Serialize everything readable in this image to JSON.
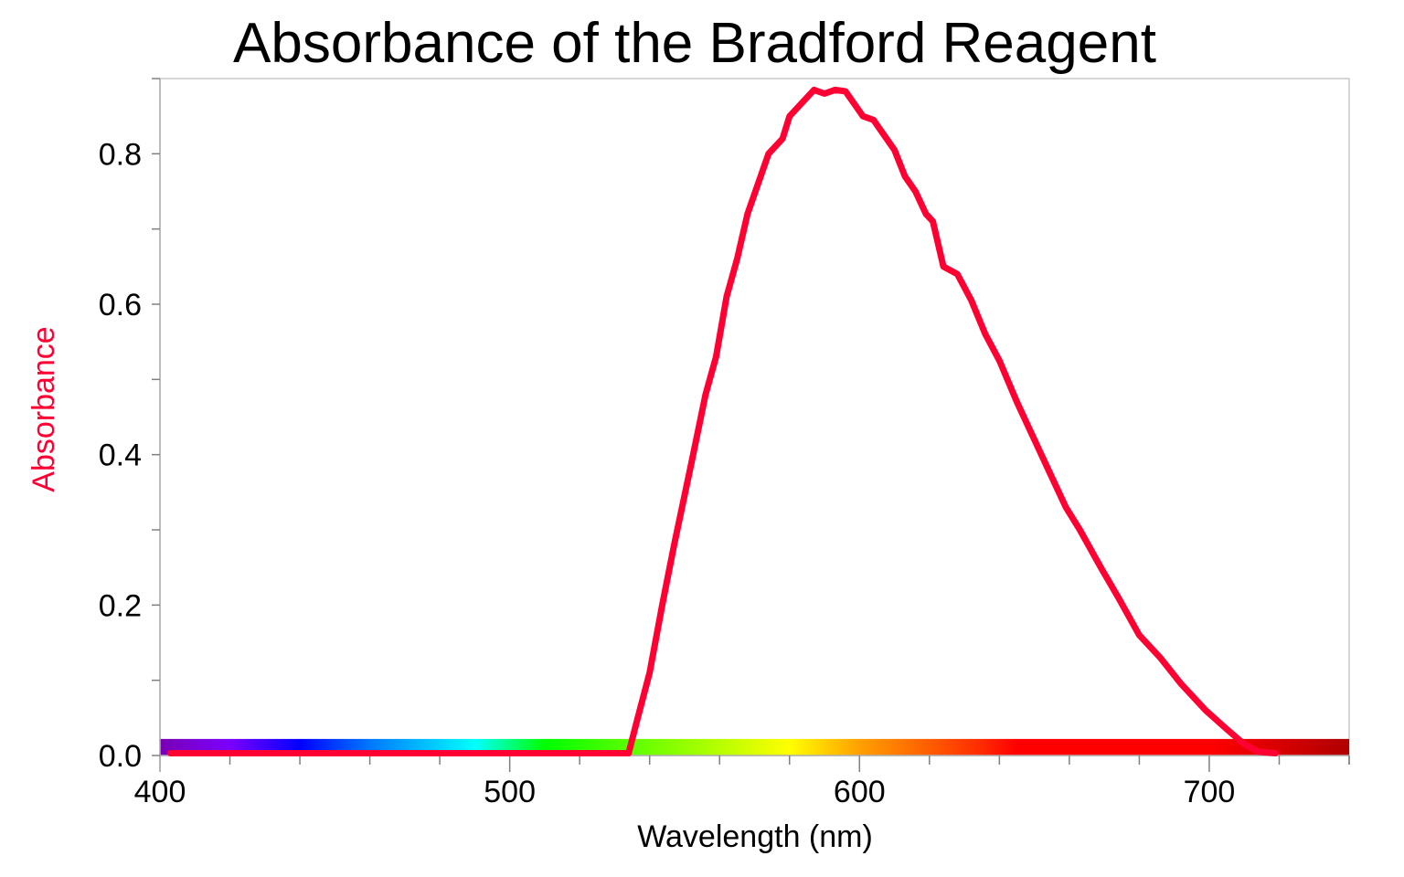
{
  "chart_data": {
    "type": "line",
    "title": "Absorbance of the Bradford Reagent",
    "xlabel": "Wavelength (nm)",
    "ylabel": "Absorbance",
    "xlim": [
      400,
      740
    ],
    "ylim": [
      0.0,
      0.9
    ],
    "xticks": [
      400,
      500,
      600,
      700
    ],
    "xtick_labels": [
      "400",
      "500",
      "600",
      "700"
    ],
    "x_minor_step": 20,
    "yticks": [
      0.0,
      0.2,
      0.4,
      0.6,
      0.8
    ],
    "ytick_labels": [
      "0.0",
      "0.2",
      "0.4",
      "0.6",
      "0.8"
    ],
    "y_minor_step": 0.1,
    "grid": false,
    "legend": null,
    "colors": {
      "line": "#ff0033",
      "ylabel": "#ff0033",
      "axis": "#b0b0b0",
      "frame": "#c8c8c8"
    },
    "spectrum_bar": {
      "description": "visible-spectrum color band along x-axis from 400 to 740 nm",
      "height_abs": 0.022,
      "stops": [
        {
          "nm": 400,
          "color": "#7a00b4"
        },
        {
          "nm": 420,
          "color": "#7b00ff"
        },
        {
          "nm": 440,
          "color": "#0000ff"
        },
        {
          "nm": 460,
          "color": "#0078ff"
        },
        {
          "nm": 490,
          "color": "#00ffff"
        },
        {
          "nm": 510,
          "color": "#00ff00"
        },
        {
          "nm": 540,
          "color": "#70ff00"
        },
        {
          "nm": 580,
          "color": "#ffff00"
        },
        {
          "nm": 600,
          "color": "#ffa000"
        },
        {
          "nm": 635,
          "color": "#ff2a00"
        },
        {
          "nm": 645,
          "color": "#ff0000"
        },
        {
          "nm": 700,
          "color": "#ff0000"
        },
        {
          "nm": 740,
          "color": "#b00000"
        }
      ]
    },
    "series": [
      {
        "name": "Absorbance",
        "x": [
          403,
          534,
          536.6,
          540,
          543.6,
          547,
          552,
          556,
          559,
          562,
          565,
          568,
          571,
          574,
          578,
          580,
          587,
          590,
          593,
          596,
          601,
          604,
          610,
          613,
          616,
          619,
          621,
          624,
          628,
          632,
          636,
          640,
          645,
          650,
          654,
          659,
          663,
          669,
          674,
          680,
          686,
          692,
          699,
          705,
          710,
          714,
          719
        ],
        "y": [
          0.003,
          0.003,
          0.05,
          0.11,
          0.2,
          0.28,
          0.39,
          0.48,
          0.53,
          0.61,
          0.66,
          0.72,
          0.76,
          0.8,
          0.82,
          0.85,
          0.885,
          0.88,
          0.885,
          0.883,
          0.85,
          0.845,
          0.805,
          0.77,
          0.75,
          0.72,
          0.71,
          0.65,
          0.64,
          0.605,
          0.56,
          0.525,
          0.47,
          0.42,
          0.38,
          0.33,
          0.3,
          0.25,
          0.21,
          0.16,
          0.13,
          0.095,
          0.06,
          0.035,
          0.015,
          0.005,
          0.003
        ]
      }
    ]
  }
}
